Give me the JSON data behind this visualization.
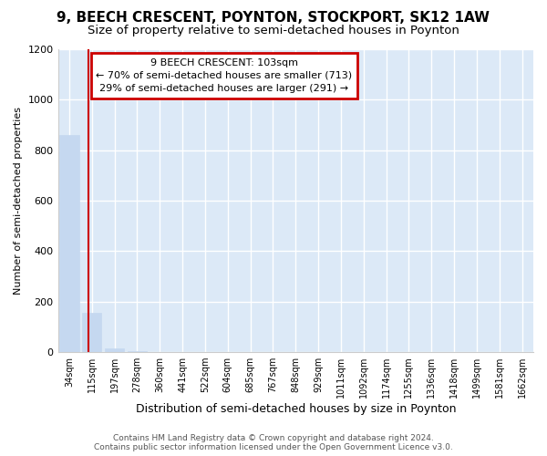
{
  "title": "9, BEECH CRESCENT, POYNTON, STOCKPORT, SK12 1AW",
  "subtitle": "Size of property relative to semi-detached houses in Poynton",
  "xlabel": "Distribution of semi-detached houses by size in Poynton",
  "ylabel": "Number of semi-detached properties",
  "footer_line1": "Contains HM Land Registry data © Crown copyright and database right 2024.",
  "footer_line2": "Contains public sector information licensed under the Open Government Licence v3.0.",
  "bins": [
    "34sqm",
    "115sqm",
    "197sqm",
    "278sqm",
    "360sqm",
    "441sqm",
    "522sqm",
    "604sqm",
    "685sqm",
    "767sqm",
    "848sqm",
    "929sqm",
    "1011sqm",
    "1092sqm",
    "1174sqm",
    "1255sqm",
    "1336sqm",
    "1418sqm",
    "1499sqm",
    "1581sqm",
    "1662sqm"
  ],
  "values": [
    860,
    155,
    15,
    2,
    1,
    0,
    0,
    0,
    0,
    0,
    0,
    0,
    0,
    0,
    0,
    0,
    0,
    0,
    0,
    0,
    0
  ],
  "bar_color": "#c5d8f0",
  "bar_edge_color": "#c5d8f0",
  "background_color": "#ffffff",
  "plot_bg_color": "#dce9f7",
  "grid_color": "#ffffff",
  "property_size": 103,
  "annotation_text_line1": "9 BEECH CRESCENT: 103sqm",
  "annotation_text_line2": "← 70% of semi-detached houses are smaller (713)",
  "annotation_text_line3": "29% of semi-detached houses are larger (291) →",
  "ylim": [
    0,
    1200
  ],
  "yticks": [
    0,
    200,
    400,
    600,
    800,
    1000,
    1200
  ],
  "title_fontsize": 11,
  "subtitle_fontsize": 9.5,
  "annotation_box_color": "#ffffff",
  "annotation_border_color": "#cc0000",
  "red_line_color": "#cc0000"
}
